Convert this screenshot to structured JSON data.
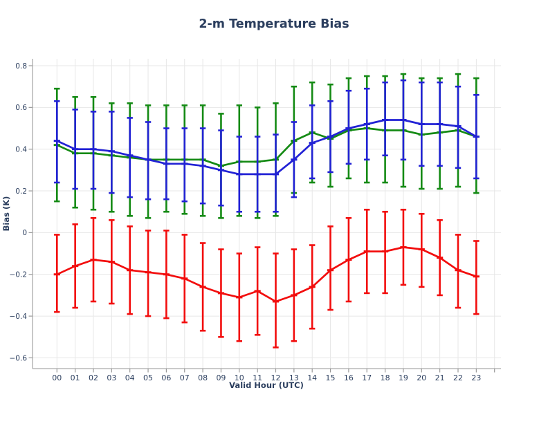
{
  "title": "2-m Temperature Bias",
  "x_axis": {
    "label": "Valid Hour (UTC)",
    "tick_labels": [
      "00",
      "01",
      "02",
      "03",
      "04",
      "05",
      "06",
      "07",
      "08",
      "09",
      "10",
      "11",
      "12",
      "13",
      "14",
      "15",
      "16",
      "17",
      "18",
      "19",
      "20",
      "21",
      "22",
      "23"
    ]
  },
  "y_axis": {
    "label": "Bias (K)",
    "tick_labels": [
      "0.8",
      "0.6",
      "0.4",
      "0.2",
      "0",
      "−0.2",
      "−0.4",
      "−0.6"
    ],
    "tick_values": [
      0.8,
      0.6,
      0.4,
      0.2,
      0.0,
      -0.2,
      -0.4,
      -0.6
    ]
  },
  "colors": {
    "background": "#ffffff",
    "text": "#2b3e5e",
    "grid": "#e7e7e7",
    "spine": "#aaaaaa",
    "tick": "#999999",
    "green": "#148a14",
    "blue": "#2222d5",
    "red": "#f20d0d"
  },
  "chart_data": {
    "type": "line",
    "error_bars": true,
    "title": "2-m Temperature Bias",
    "xlabel": "Valid Hour (UTC)",
    "ylabel": "Bias (K)",
    "categories": [
      "00",
      "01",
      "02",
      "03",
      "04",
      "05",
      "06",
      "07",
      "08",
      "09",
      "10",
      "11",
      "12",
      "13",
      "14",
      "15",
      "16",
      "17",
      "18",
      "19",
      "20",
      "21",
      "22",
      "23"
    ],
    "ylim": [
      -0.65,
      0.83
    ],
    "grid": true,
    "legend_position": "none",
    "series": [
      {
        "name": "green-series",
        "color_key": "green",
        "values": [
          0.42,
          0.38,
          0.38,
          0.37,
          0.36,
          0.35,
          0.35,
          0.35,
          0.35,
          0.32,
          0.34,
          0.34,
          0.35,
          0.44,
          0.48,
          0.45,
          0.49,
          0.5,
          0.49,
          0.49,
          0.47,
          0.48,
          0.49,
          0.46
        ],
        "lower": [
          0.15,
          0.12,
          0.11,
          0.1,
          0.08,
          0.07,
          0.1,
          0.09,
          0.08,
          0.07,
          0.08,
          0.07,
          0.08,
          0.19,
          0.24,
          0.22,
          0.26,
          0.24,
          0.24,
          0.22,
          0.21,
          0.21,
          0.22,
          0.19
        ],
        "upper": [
          0.69,
          0.65,
          0.65,
          0.62,
          0.62,
          0.61,
          0.61,
          0.61,
          0.61,
          0.57,
          0.61,
          0.6,
          0.62,
          0.7,
          0.72,
          0.71,
          0.74,
          0.75,
          0.75,
          0.76,
          0.74,
          0.74,
          0.76,
          0.74
        ]
      },
      {
        "name": "blue-series",
        "color_key": "blue",
        "values": [
          0.44,
          0.4,
          0.4,
          0.39,
          0.37,
          0.35,
          0.33,
          0.33,
          0.32,
          0.3,
          0.28,
          0.28,
          0.28,
          0.35,
          0.43,
          0.46,
          0.5,
          0.52,
          0.54,
          0.54,
          0.52,
          0.52,
          0.51,
          0.46
        ],
        "lower": [
          0.24,
          0.21,
          0.21,
          0.19,
          0.17,
          0.16,
          0.16,
          0.15,
          0.14,
          0.13,
          0.1,
          0.1,
          0.1,
          0.17,
          0.26,
          0.29,
          0.33,
          0.35,
          0.37,
          0.35,
          0.32,
          0.32,
          0.31,
          0.26
        ],
        "upper": [
          0.63,
          0.59,
          0.58,
          0.58,
          0.55,
          0.53,
          0.5,
          0.5,
          0.5,
          0.49,
          0.46,
          0.46,
          0.47,
          0.53,
          0.61,
          0.63,
          0.68,
          0.69,
          0.72,
          0.73,
          0.72,
          0.72,
          0.7,
          0.66
        ]
      },
      {
        "name": "red-series",
        "color_key": "red",
        "values": [
          -0.2,
          -0.16,
          -0.13,
          -0.14,
          -0.18,
          -0.19,
          -0.2,
          -0.22,
          -0.26,
          -0.29,
          -0.31,
          -0.28,
          -0.33,
          -0.3,
          -0.26,
          -0.18,
          -0.13,
          -0.09,
          -0.09,
          -0.07,
          -0.08,
          -0.12,
          -0.18,
          -0.21
        ],
        "lower": [
          -0.38,
          -0.36,
          -0.33,
          -0.34,
          -0.39,
          -0.4,
          -0.41,
          -0.43,
          -0.47,
          -0.5,
          -0.52,
          -0.49,
          -0.55,
          -0.52,
          -0.46,
          -0.37,
          -0.33,
          -0.29,
          -0.29,
          -0.25,
          -0.26,
          -0.3,
          -0.36,
          -0.39
        ],
        "upper": [
          -0.01,
          0.04,
          0.07,
          0.06,
          0.03,
          0.01,
          0.01,
          -0.01,
          -0.05,
          -0.08,
          -0.1,
          -0.07,
          -0.1,
          -0.08,
          -0.06,
          0.03,
          0.07,
          0.11,
          0.1,
          0.11,
          0.09,
          0.06,
          -0.01,
          -0.04
        ]
      }
    ]
  }
}
